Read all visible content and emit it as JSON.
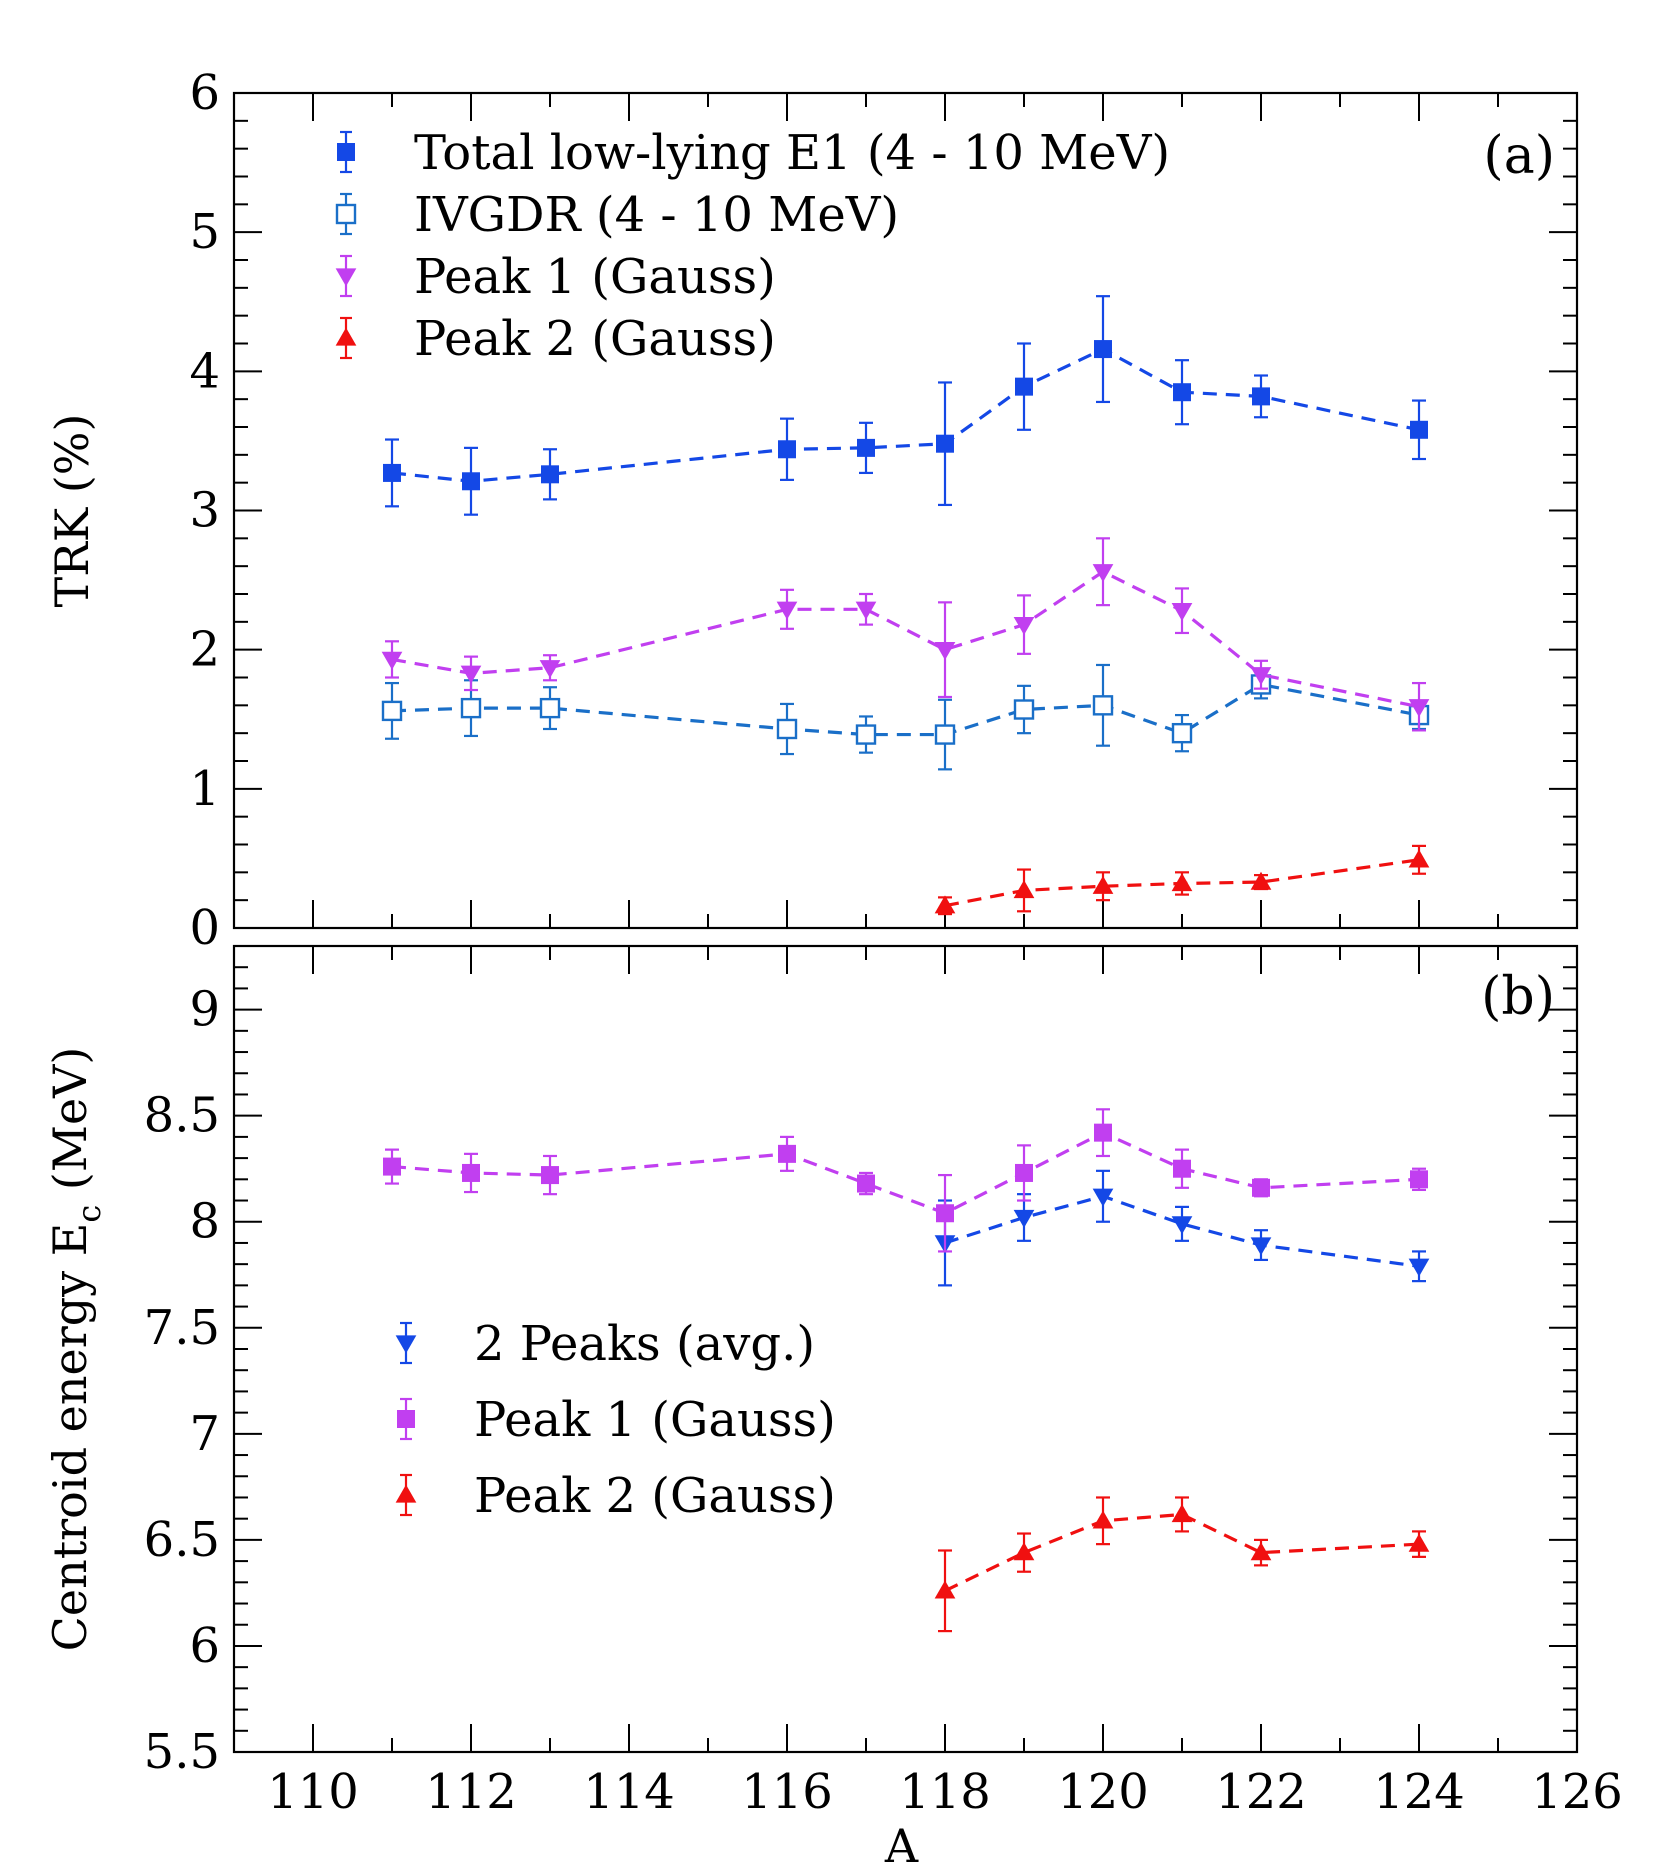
{
  "chart_data": [
    {
      "panel": "a",
      "type": "scatter",
      "panel_label": "(a)",
      "ylabel": "TRK (%)",
      "xlabel": "",
      "xlim": [
        109,
        126
      ],
      "ylim": [
        0,
        6
      ],
      "xticks": [
        110,
        112,
        114,
        116,
        118,
        120,
        122,
        124,
        126
      ],
      "yticks": [
        0,
        1,
        2,
        3,
        4,
        5,
        6
      ],
      "ytick_labels": [
        "0",
        "1",
        "2",
        "3",
        "4",
        "5",
        "6"
      ],
      "legend_position": "top-left",
      "series": [
        {
          "name": "Total low-lying E1 (4 - 10 MeV)",
          "marker": "square-filled",
          "color": "#1448e6",
          "x": [
            111,
            112,
            113,
            116,
            117,
            118,
            119,
            120,
            121,
            122,
            124
          ],
          "y": [
            3.27,
            3.21,
            3.26,
            3.44,
            3.45,
            3.48,
            3.89,
            4.16,
            3.85,
            3.82,
            3.58
          ],
          "err": [
            0.24,
            0.24,
            0.18,
            0.22,
            0.18,
            0.44,
            0.31,
            0.38,
            0.23,
            0.15,
            0.21
          ]
        },
        {
          "name": "IVGDR (4 - 10 MeV)",
          "marker": "square-open",
          "color": "#1a6fc8",
          "x": [
            111,
            112,
            113,
            116,
            117,
            118,
            119,
            120,
            121,
            122,
            124
          ],
          "y": [
            1.56,
            1.58,
            1.58,
            1.43,
            1.39,
            1.39,
            1.57,
            1.6,
            1.4,
            1.75,
            1.53
          ],
          "err": [
            0.2,
            0.2,
            0.15,
            0.18,
            0.13,
            0.25,
            0.17,
            0.29,
            0.13,
            0.1,
            0.1
          ]
        },
        {
          "name": "Peak 1 (Gauss)",
          "marker": "triangle-down-filled",
          "color": "#c13ff0",
          "x": [
            111,
            112,
            113,
            116,
            117,
            118,
            119,
            120,
            121,
            122,
            124
          ],
          "y": [
            1.93,
            1.83,
            1.87,
            2.29,
            2.29,
            2.0,
            2.18,
            2.56,
            2.28,
            1.82,
            1.59
          ],
          "err": [
            0.13,
            0.12,
            0.09,
            0.14,
            0.11,
            0.34,
            0.21,
            0.24,
            0.16,
            0.1,
            0.17
          ]
        },
        {
          "name": "Peak 2 (Gauss)",
          "marker": "triangle-up-filled",
          "color": "#f01010",
          "x": [
            118,
            119,
            120,
            121,
            122,
            124
          ],
          "y": [
            0.16,
            0.27,
            0.3,
            0.32,
            0.33,
            0.49
          ],
          "err": [
            0.06,
            0.15,
            0.1,
            0.08,
            0.05,
            0.1
          ]
        }
      ]
    },
    {
      "panel": "b",
      "type": "scatter",
      "panel_label": "(b)",
      "ylabel_main": "Centroid energy E",
      "ylabel_sub": "c",
      "ylabel_unit": " (MeV)",
      "xlabel": "A",
      "xlim": [
        109,
        126
      ],
      "ylim": [
        5.5,
        9.3
      ],
      "xticks": [
        110,
        112,
        114,
        116,
        118,
        120,
        122,
        124,
        126
      ],
      "xtick_labels": [
        "110",
        "112",
        "114",
        "116",
        "118",
        "120",
        "122",
        "124",
        "126"
      ],
      "yticks": [
        5.5,
        6,
        6.5,
        7,
        7.5,
        8,
        8.5,
        9
      ],
      "ytick_labels": [
        "5.5",
        "6",
        "6.5",
        "7",
        "7.5",
        "8",
        "8.5",
        "9"
      ],
      "legend_position": "bottom-left",
      "series": [
        {
          "name": "2 Peaks (avg.)",
          "marker": "triangle-down-filled",
          "color": "#1448e6",
          "x": [
            118,
            119,
            120,
            121,
            122,
            124
          ],
          "y": [
            7.9,
            8.02,
            8.12,
            7.99,
            7.89,
            7.79
          ],
          "err": [
            0.2,
            0.11,
            0.12,
            0.08,
            0.07,
            0.07
          ]
        },
        {
          "name": "Peak 1 (Gauss)",
          "marker": "square-filled",
          "color": "#c13ff0",
          "x": [
            111,
            112,
            113,
            116,
            117,
            118,
            119,
            120,
            121,
            122,
            124
          ],
          "y": [
            8.26,
            8.23,
            8.22,
            8.32,
            8.18,
            8.04,
            8.23,
            8.42,
            8.25,
            8.16,
            8.2
          ],
          "err": [
            0.08,
            0.09,
            0.09,
            0.08,
            0.05,
            0.18,
            0.13,
            0.11,
            0.09,
            0.04,
            0.05
          ]
        },
        {
          "name": "Peak 2 (Gauss)",
          "marker": "triangle-up-filled",
          "color": "#f01010",
          "x": [
            118,
            119,
            120,
            121,
            122,
            124
          ],
          "y": [
            6.26,
            6.44,
            6.59,
            6.62,
            6.44,
            6.48
          ],
          "err": [
            0.19,
            0.09,
            0.11,
            0.08,
            0.06,
            0.06
          ]
        }
      ]
    }
  ]
}
